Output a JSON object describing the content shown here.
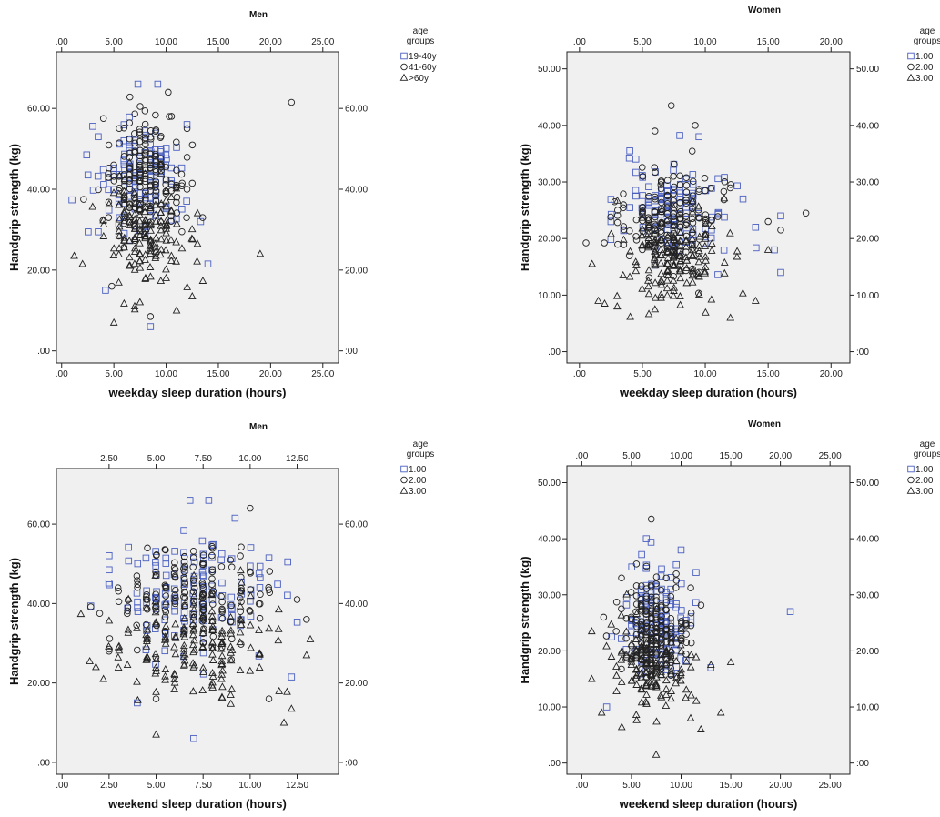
{
  "chart_data": [
    {
      "type": "scatter",
      "title": "Men",
      "xlabel": "weekday sleep duration (hours)",
      "ylabel": "Handgrip strength (kg)",
      "xlim": [
        -0.5,
        26.5
      ],
      "ylim": [
        -3,
        74
      ],
      "xticks_bottom": [
        ".00",
        "5.00",
        "10.00",
        "15.00",
        "20.00",
        "25.00"
      ],
      "xticks_top": [
        ".00",
        "5.00",
        "10.00",
        "15.00",
        "20.00",
        "25.00"
      ],
      "yticks_left": [
        ".00",
        "20.00",
        "40.00",
        "60.00"
      ],
      "yticks_right": [
        ":00",
        "20.00",
        "40.00",
        "60.00"
      ],
      "legend_title": "age groups",
      "legend_position": "top-right, outside",
      "series": [
        {
          "name": "19-40y",
          "marker": "square",
          "color": "#4a5fc1",
          "cloud": {
            "center": [
              7.5,
              42
            ],
            "spread": [
              1.9,
              7
            ],
            "count": 130
          },
          "points": [
            [
              7.3,
              66
            ],
            [
              9.2,
              66
            ],
            [
              8.5,
              6
            ],
            [
              12.0,
              56
            ],
            [
              13.3,
              32
            ],
            [
              14.0,
              21.5
            ],
            [
              4.2,
              15
            ],
            [
              2.4,
              48.5
            ],
            [
              3.5,
              53
            ]
          ]
        },
        {
          "name": "41-60y",
          "marker": "circle",
          "color": "#222222",
          "cloud": {
            "center": [
              7.8,
              42
            ],
            "spread": [
              1.8,
              7
            ],
            "count": 170
          },
          "points": [
            [
              22.0,
              61.5
            ],
            [
              10.2,
              64
            ],
            [
              10.3,
              58
            ],
            [
              4.0,
              57.5
            ],
            [
              12.0,
              40
            ],
            [
              13.5,
              33
            ],
            [
              8.5,
              8.5
            ],
            [
              2.1,
              37.5
            ],
            [
              4.8,
              16
            ]
          ]
        },
        {
          "name": ">60y",
          "marker": "triangle",
          "color": "#222222",
          "cloud": {
            "center": [
              8,
              30
            ],
            "spread": [
              2.0,
              7
            ],
            "count": 160
          },
          "points": [
            [
              19.0,
              24
            ],
            [
              1.2,
              23.5
            ],
            [
              2.0,
              21.5
            ],
            [
              5.0,
              7
            ],
            [
              12.5,
              13.5
            ],
            [
              11.0,
              10
            ],
            [
              13.0,
              26.5
            ]
          ]
        }
      ]
    },
    {
      "type": "scatter",
      "title": "Women",
      "xlabel": "weekday sleep duration (hours)",
      "ylabel": "Handgrip strength (kg)",
      "xlim": [
        -1,
        21.5
      ],
      "ylim": [
        -2,
        53
      ],
      "xticks_bottom": [
        ".00",
        "5.00",
        "10.00",
        "15.00",
        "20.00"
      ],
      "xticks_top": [
        ".00",
        "5.00",
        "10.00",
        "15.00",
        "20.00"
      ],
      "yticks_left": [
        ".00",
        "10.00",
        "20.00",
        "30.00",
        "40.00",
        "50.00"
      ],
      "yticks_right": [
        ":00",
        "10.00",
        "20.00",
        "30.00",
        "40.00",
        "50.00"
      ],
      "legend_title": "age groups",
      "legend_position": "top-right, outside",
      "series": [
        {
          "name": "1.00",
          "marker": "square",
          "color": "#4a5fc1",
          "cloud": {
            "center": [
              7.6,
              25
            ],
            "spread": [
              1.9,
              4.5
            ],
            "count": 130
          },
          "points": [
            [
              16.0,
              14
            ],
            [
              16.0,
              24
            ],
            [
              14.0,
              22
            ],
            [
              13.0,
              27
            ],
            [
              4.0,
              35.5
            ],
            [
              9.5,
              38
            ],
            [
              2.5,
              23
            ],
            [
              15.5,
              18
            ]
          ]
        },
        {
          "name": "2.00",
          "marker": "circle",
          "color": "#222222",
          "cloud": {
            "center": [
              7.5,
              24
            ],
            "spread": [
              1.9,
              4.5
            ],
            "count": 170
          },
          "points": [
            [
              7.3,
              43.5
            ],
            [
              18.0,
              24.5
            ],
            [
              16.0,
              21.5
            ],
            [
              15.0,
              23
            ],
            [
              9.2,
              40
            ],
            [
              6.0,
              39
            ],
            [
              2.8,
              26.5
            ]
          ]
        },
        {
          "name": "3.00",
          "marker": "triangle",
          "color": "#222222",
          "cloud": {
            "center": [
              7.5,
              17
            ],
            "spread": [
              2.0,
              4.5
            ],
            "count": 170
          },
          "points": [
            [
              1.0,
              15.5
            ],
            [
              1.5,
              9
            ],
            [
              2.0,
              8.5
            ],
            [
              14.0,
              9
            ],
            [
              12.0,
              6
            ],
            [
              15.0,
              18
            ],
            [
              3.0,
              8
            ]
          ]
        }
      ]
    },
    {
      "type": "scatter",
      "title": "Men",
      "xlabel": "weekend sleep duration (hours)",
      "ylabel": "Handgrip strength (kg)",
      "xlim": [
        -0.3,
        14.7
      ],
      "ylim": [
        -3,
        74
      ],
      "xticks_bottom": [
        ".00",
        "2.50",
        "5.00",
        "7.50",
        "10.00",
        "12.50"
      ],
      "xticks_top": [
        "2.50",
        "5.00",
        "7.50",
        "10.00",
        "12.50"
      ],
      "yticks_left": [
        ".00",
        "20.00",
        "40.00",
        "60.00"
      ],
      "yticks_right": [
        ":00",
        "20.00",
        "40.00",
        "60.00"
      ],
      "legend_title": "age groups",
      "legend_position": "top-right, outside",
      "series": [
        {
          "name": "1.00",
          "marker": "square",
          "color": "#4a5fc1",
          "cloud": {
            "center": [
              7.0,
              42
            ],
            "spread": [
              1.9,
              7
            ],
            "count": 130
          },
          "points": [
            [
              6.8,
              66
            ],
            [
              7.8,
              66
            ],
            [
              7.0,
              6
            ],
            [
              12.0,
              50.5
            ],
            [
              12.2,
              21.5
            ],
            [
              4.0,
              15
            ],
            [
              2.5,
              48.5
            ],
            [
              9.2,
              61.5
            ],
            [
              11.0,
              51.5
            ]
          ]
        },
        {
          "name": "2.00",
          "marker": "circle",
          "color": "#222222",
          "cloud": {
            "center": [
              7.0,
              42
            ],
            "spread": [
              1.9,
              7
            ],
            "count": 170
          },
          "points": [
            [
              10.0,
              64
            ],
            [
              12.5,
              41
            ],
            [
              13.0,
              36
            ],
            [
              2.5,
              28
            ],
            [
              5.0,
              16
            ],
            [
              11.0,
              16
            ],
            [
              2.0,
              37.5
            ]
          ]
        },
        {
          "name": "3.00",
          "marker": "triangle",
          "color": "#222222",
          "cloud": {
            "center": [
              7.0,
              30
            ],
            "spread": [
              2.0,
              7
            ],
            "count": 170
          },
          "points": [
            [
              5.0,
              7
            ],
            [
              13.2,
              31
            ],
            [
              13.0,
              27
            ],
            [
              11.8,
              10
            ],
            [
              1.8,
              24
            ],
            [
              2.2,
              21
            ],
            [
              12.2,
              13.5
            ]
          ]
        }
      ]
    },
    {
      "type": "scatter",
      "title": "Women",
      "xlabel": "weekend sleep duration (hours)",
      "ylabel": "Handgrip strength (kg)",
      "xlim": [
        -1.5,
        27
      ],
      "ylim": [
        -2,
        53
      ],
      "xticks_bottom": [
        ".00",
        "5.00",
        "10.00",
        "15.00",
        "20.00",
        "25.00"
      ],
      "xticks_top": [
        ".00",
        "5.00",
        "10.00",
        "15.00",
        "20.00",
        "25.00"
      ],
      "yticks_left": [
        ".00",
        "10.00",
        "20.00",
        "30.00",
        "40.00",
        "50.00"
      ],
      "yticks_right": [
        ":00",
        "10.00",
        "20.00",
        "30.00",
        "40.00",
        "50.00"
      ],
      "legend_title": "age groups",
      "legend_position": "top-right, outside",
      "series": [
        {
          "name": "1.00",
          "marker": "square",
          "color": "#4a5fc1",
          "cloud": {
            "center": [
              7.5,
              25
            ],
            "spread": [
              1.6,
              4.5
            ],
            "count": 130
          },
          "points": [
            [
              21.0,
              27
            ],
            [
              13.0,
              17
            ],
            [
              10.0,
              38
            ],
            [
              6.5,
              40
            ],
            [
              2.5,
              10
            ],
            [
              3.0,
              22.5
            ],
            [
              11.0,
              25
            ]
          ]
        },
        {
          "name": "2.00",
          "marker": "circle",
          "color": "#222222",
          "cloud": {
            "center": [
              7.3,
              24
            ],
            "spread": [
              1.6,
              4.5
            ],
            "count": 170
          },
          "points": [
            [
              7.0,
              43.5
            ],
            [
              5.5,
              35.5
            ],
            [
              4.0,
              33
            ],
            [
              11.0,
              24.5
            ],
            [
              2.2,
              26
            ]
          ]
        },
        {
          "name": "3.00",
          "marker": "triangle",
          "color": "#222222",
          "cloud": {
            "center": [
              7.3,
              17
            ],
            "spread": [
              1.8,
              4.5
            ],
            "count": 170
          },
          "points": [
            [
              1.0,
              23.5
            ],
            [
              1.0,
              15
            ],
            [
              2.0,
              9
            ],
            [
              14.0,
              9
            ],
            [
              15.0,
              18
            ],
            [
              13.0,
              17.5
            ],
            [
              12.0,
              6
            ]
          ]
        }
      ]
    }
  ]
}
